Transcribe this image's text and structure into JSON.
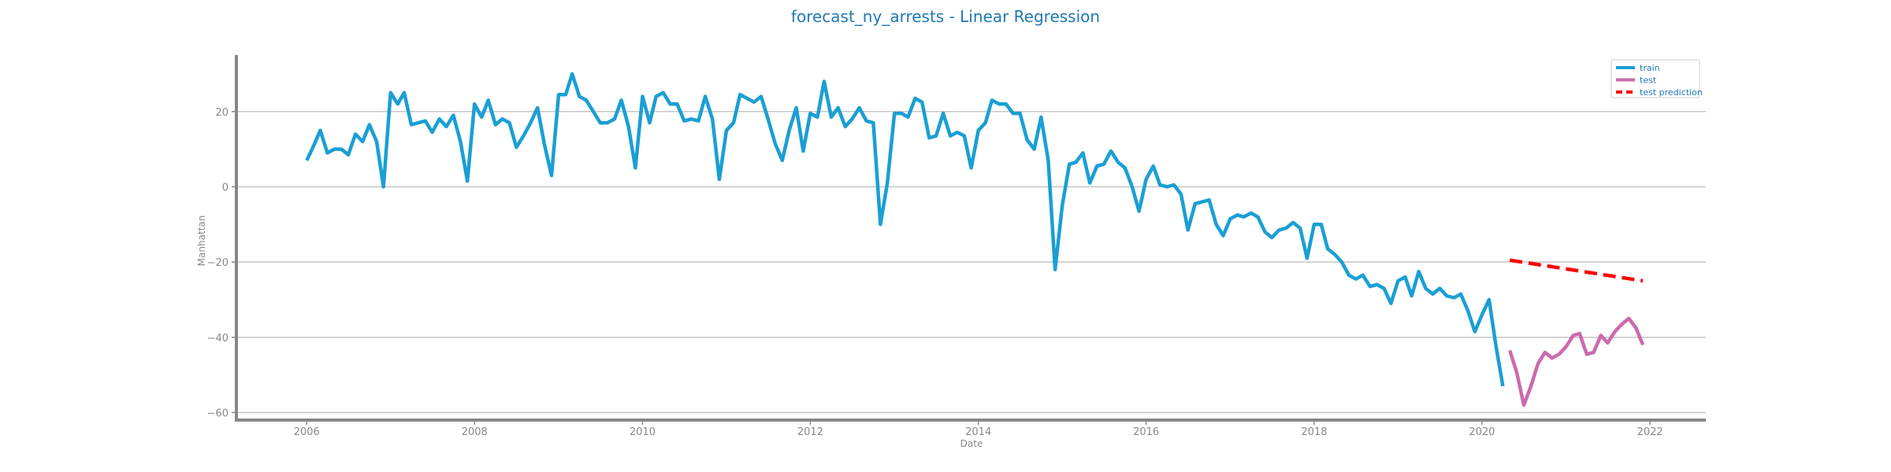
{
  "chart_data": {
    "type": "line",
    "title": "forecast_ny_arrests - Linear Regression",
    "xlabel": "Date",
    "ylabel": "Manhattan",
    "xlim": [
      "2005-03-01",
      "2022-09-01"
    ],
    "ylim": [
      -62,
      35
    ],
    "xticks": [
      "2006",
      "2008",
      "2010",
      "2012",
      "2014",
      "2016",
      "2018",
      "2020",
      "2022"
    ],
    "yticks": [
      20,
      0,
      -20,
      -40,
      -60
    ],
    "ytick_labels": [
      "20",
      "0",
      "−20",
      "−40",
      "−60"
    ],
    "grid": "horizontal",
    "legend_position": "top-right",
    "series": [
      {
        "name": "train",
        "color": "#1a9fd4",
        "style": "solid",
        "x": [
          "2006-01",
          "2006-02",
          "2006-03",
          "2006-04",
          "2006-05",
          "2006-06",
          "2006-07",
          "2006-08",
          "2006-09",
          "2006-10",
          "2006-11",
          "2006-12",
          "2007-01",
          "2007-02",
          "2007-03",
          "2007-04",
          "2007-05",
          "2007-06",
          "2007-07",
          "2007-08",
          "2007-09",
          "2007-10",
          "2007-11",
          "2007-12",
          "2008-01",
          "2008-02",
          "2008-03",
          "2008-04",
          "2008-05",
          "2008-06",
          "2008-07",
          "2008-08",
          "2008-09",
          "2008-10",
          "2008-11",
          "2008-12",
          "2009-01",
          "2009-02",
          "2009-03",
          "2009-04",
          "2009-05",
          "2009-06",
          "2009-07",
          "2009-08",
          "2009-09",
          "2009-10",
          "2009-11",
          "2009-12",
          "2010-01",
          "2010-02",
          "2010-03",
          "2010-04",
          "2010-05",
          "2010-06",
          "2010-07",
          "2010-08",
          "2010-09",
          "2010-10",
          "2010-11",
          "2010-12",
          "2011-01",
          "2011-02",
          "2011-03",
          "2011-04",
          "2011-05",
          "2011-06",
          "2011-07",
          "2011-08",
          "2011-09",
          "2011-10",
          "2011-11",
          "2011-12",
          "2012-01",
          "2012-02",
          "2012-03",
          "2012-04",
          "2012-05",
          "2012-06",
          "2012-07",
          "2012-08",
          "2012-09",
          "2012-10",
          "2012-11",
          "2012-12",
          "2013-01",
          "2013-02",
          "2013-03",
          "2013-04",
          "2013-05",
          "2013-06",
          "2013-07",
          "2013-08",
          "2013-09",
          "2013-10",
          "2013-11",
          "2013-12",
          "2014-01",
          "2014-02",
          "2014-03",
          "2014-04",
          "2014-05",
          "2014-06",
          "2014-07",
          "2014-08",
          "2014-09",
          "2014-10",
          "2014-11",
          "2014-12",
          "2015-01",
          "2015-02",
          "2015-03",
          "2015-04",
          "2015-05",
          "2015-06",
          "2015-07",
          "2015-08",
          "2015-09",
          "2015-10",
          "2015-11",
          "2015-12",
          "2016-01",
          "2016-02",
          "2016-03",
          "2016-04",
          "2016-05",
          "2016-06",
          "2016-07",
          "2016-08",
          "2016-09",
          "2016-10",
          "2016-11",
          "2016-12",
          "2017-01",
          "2017-02",
          "2017-03",
          "2017-04",
          "2017-05",
          "2017-06",
          "2017-07",
          "2017-08",
          "2017-09",
          "2017-10",
          "2017-11",
          "2017-12",
          "2018-01",
          "2018-02",
          "2018-03",
          "2018-04",
          "2018-05",
          "2018-06",
          "2018-07",
          "2018-08",
          "2018-09",
          "2018-10",
          "2018-11",
          "2018-12",
          "2019-01",
          "2019-02",
          "2019-03",
          "2019-04",
          "2019-05",
          "2019-06",
          "2019-07",
          "2019-08",
          "2019-09",
          "2019-10",
          "2019-11",
          "2019-12",
          "2020-01",
          "2020-02",
          "2020-03",
          "2020-04"
        ],
        "values": [
          7,
          11,
          15,
          9,
          10,
          10,
          8.5,
          14,
          12,
          16.5,
          12,
          0,
          25,
          22,
          25,
          16.5,
          17,
          17.5,
          14.5,
          18,
          16,
          19,
          12,
          1.5,
          22,
          18.5,
          23,
          16.5,
          18,
          17,
          10.5,
          13.5,
          17,
          21,
          11,
          3,
          24.5,
          24.5,
          30,
          24,
          23,
          20,
          17,
          17,
          18,
          23,
          16,
          5,
          24,
          17,
          24,
          25,
          22,
          22,
          17.5,
          18,
          17.5,
          24,
          18,
          2,
          15,
          17,
          24.5,
          23.5,
          22.5,
          24,
          18,
          11.5,
          7,
          15,
          21,
          9.5,
          19.5,
          18.5,
          28,
          18.5,
          21,
          16,
          18,
          21,
          17.5,
          17,
          -10,
          1,
          19.5,
          19.5,
          18.5,
          23.5,
          22.5,
          13,
          13.5,
          19.5,
          13.5,
          14.5,
          13.5,
          5,
          15,
          17,
          23,
          22,
          22,
          19.5,
          19.5,
          12.5,
          10,
          18.5,
          7,
          -22,
          -5,
          6,
          6.5,
          9,
          1,
          5.5,
          6,
          9.5,
          6.5,
          5,
          0,
          -6.5,
          2,
          5.5,
          0.5,
          0,
          0.5,
          -2,
          -11.5,
          -4.5,
          -4,
          -3.5,
          -10,
          -13,
          -8.5,
          -7.5,
          -8,
          -7,
          -8,
          -12,
          -13.5,
          -11.5,
          -11,
          -9.5,
          -11,
          -19,
          -10,
          -10,
          -16.5,
          -18,
          -20,
          -23.5,
          -24.5,
          -23.5,
          -26.5,
          -26,
          -27,
          -31,
          -25,
          -24,
          -29,
          -22.5,
          -27,
          -28.5,
          -27,
          -29,
          -29.5,
          -28.5,
          -33,
          -38.5,
          -34,
          -30,
          -42,
          -53
        ]
      },
      {
        "name": "test",
        "color": "#cc6aad",
        "style": "solid",
        "x": [
          "2020-05",
          "2020-06",
          "2020-07",
          "2020-08",
          "2020-09",
          "2020-10",
          "2020-11",
          "2020-12",
          "2021-01",
          "2021-02",
          "2021-03",
          "2021-04",
          "2021-05",
          "2021-06",
          "2021-07",
          "2021-08",
          "2021-09",
          "2021-10",
          "2021-11",
          "2021-12"
        ],
        "values": [
          -43.5,
          -49.5,
          -58,
          -53,
          -47,
          -44,
          -45.5,
          -44.5,
          -42.5,
          -39.5,
          -39,
          -44.5,
          -44,
          -39.5,
          -41.5,
          -38.5,
          -36.5,
          -35,
          -37.5,
          -42
        ]
      },
      {
        "name": "test prediction",
        "color": "#ff0000",
        "style": "dashed",
        "x": [
          "2020-05",
          "2021-12"
        ],
        "values": [
          -19.5,
          -25
        ]
      }
    ]
  }
}
